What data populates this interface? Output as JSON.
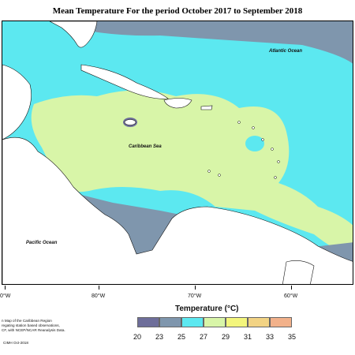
{
  "title": "Mean Temperature For the period October 2017 to September 2018",
  "labels": {
    "atlantic": "Atlantic Ocean",
    "caribbean": "Caribbean Sea",
    "pacific": "Pacific Ocean"
  },
  "longitude_ticks": [
    "0°W",
    "80°W",
    "70°W",
    "60°W"
  ],
  "legend": {
    "title": "Temperature (°C)",
    "values": [
      "20",
      "23",
      "25",
      "27",
      "29",
      "31",
      "33",
      "35"
    ],
    "colors": [
      "#6e6e9a",
      "#7f96ad",
      "#5ce8f0",
      "#d8f5a8",
      "#f3f57c",
      "#f2d384",
      "#f2b18a",
      "#e8a09a"
    ]
  },
  "credit": {
    "line1": "n Map of the Caribbean Region",
    "line2": "regating station based observations,",
    "line3": "CF, with NCEP/NCAR Reanalysis Data.",
    "line4": "CIMH Oct-2018"
  },
  "colors": {
    "deep_blue": "#7f96ad",
    "cyan": "#5ce8f0",
    "light_green": "#d8f5a8",
    "land": "#ffffff",
    "dark_purple": "#6e6e9a"
  }
}
